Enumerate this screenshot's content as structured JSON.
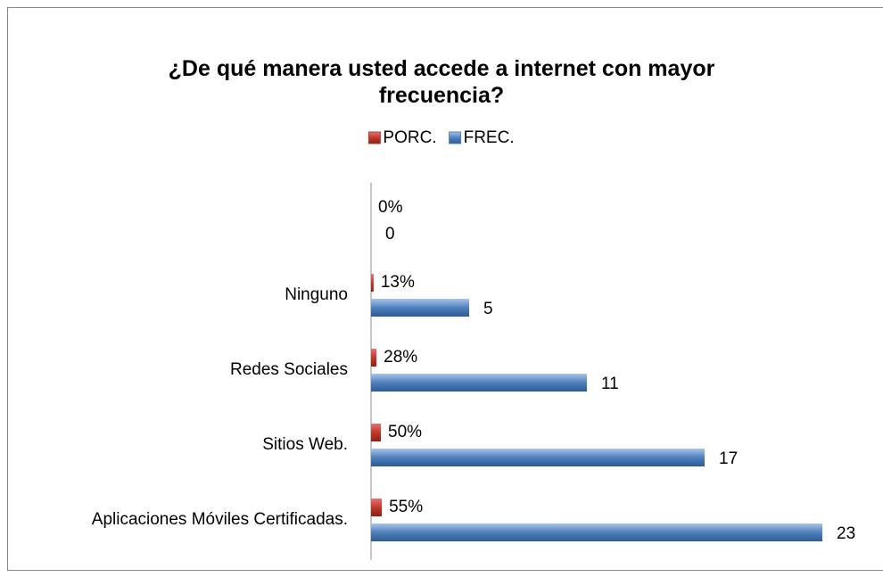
{
  "chart_data": {
    "type": "hbar",
    "title": "¿De qué manera usted accede a internet con mayor frecuencia?",
    "categories": [
      "Aplicaciones Móviles Certificadas.",
      "Sitios Web.",
      "Redes Sociales",
      "Ninguno",
      null
    ],
    "series": [
      {
        "name": "PORC.",
        "color": "#c0392b",
        "values": [
          0.55,
          0.5,
          0.28,
          0.13,
          0
        ],
        "value_labels": [
          "55%",
          "50%",
          "28%",
          "13%",
          "0%"
        ]
      },
      {
        "name": "FREC.",
        "color": "#4f81bd",
        "values": [
          23,
          17,
          11,
          5,
          0
        ]
      }
    ],
    "xlim": [
      0,
      25
    ],
    "legend": "top"
  }
}
